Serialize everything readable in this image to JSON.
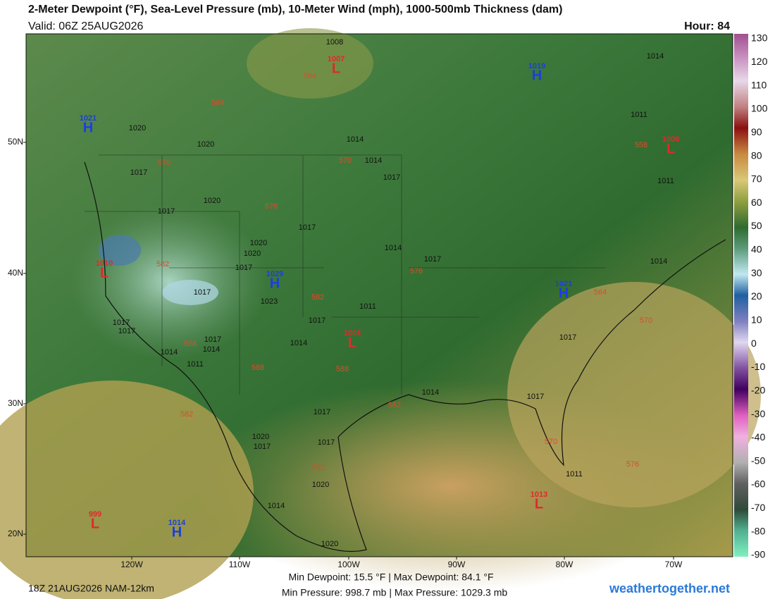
{
  "header": {
    "title": "2-Meter Dewpoint (°F), Sea-Level Pressure (mb), 10-Meter Wind (mph), 1000-500mb Thickness (dam)",
    "valid": "Valid: 06Z 25AUG2026",
    "hour": "Hour: 84"
  },
  "latitude_labels": [
    "50N",
    "40N",
    "30N",
    "20N"
  ],
  "longitude_labels": [
    "120W",
    "110W",
    "100W",
    "90W",
    "80W",
    "70W"
  ],
  "colorbar": {
    "labels": [
      130,
      120,
      110,
      100,
      90,
      80,
      70,
      60,
      50,
      40,
      30,
      20,
      10,
      0,
      -10,
      -20,
      -30,
      -40,
      -50,
      -60,
      -70,
      -80,
      -90
    ]
  },
  "pressure_centers": [
    {
      "letter": "L",
      "value": "1007"
    },
    {
      "letter": "H",
      "value": "1019"
    },
    {
      "letter": "H",
      "value": "1021"
    },
    {
      "letter": "L",
      "value": "1008"
    },
    {
      "letter": "L",
      "value": "1010"
    },
    {
      "letter": "H",
      "value": "1029"
    },
    {
      "letter": "H",
      "value": "1021"
    },
    {
      "letter": "L",
      "value": "1008"
    },
    {
      "letter": "L",
      "value": "1013"
    },
    {
      "letter": "L",
      "value": "999"
    },
    {
      "letter": "H",
      "value": "1014"
    }
  ],
  "isobar_labels": [
    "1020",
    "1020",
    "1017",
    "1017",
    "1020",
    "1020",
    "1020",
    "1017",
    "1017",
    "1017",
    "1014",
    "1017",
    "1014",
    "1014",
    "1017",
    "1023",
    "1011",
    "1017",
    "1014",
    "1017",
    "1014",
    "1014",
    "1011",
    "1017",
    "1017",
    "1017",
    "1020",
    "1017",
    "1017",
    "1020",
    "1014",
    "1014",
    "1017",
    "1017",
    "1014",
    "1011",
    "1011",
    "1014",
    "1011",
    "1020",
    "1008"
  ],
  "thickness_labels": [
    "564",
    "564",
    "570",
    "570",
    "576",
    "558",
    "582",
    "582",
    "576",
    "564",
    "570",
    "588",
    "588",
    "588",
    "582",
    "582",
    "582",
    "576",
    "570"
  ],
  "footer": {
    "run": "18Z 21AUG2026 NAM-12km",
    "dewpoint_range": "Min Dewpoint:  15.5 °F | Max Dewpoint:  84.1 °F",
    "pressure_range": "Min Pressure: 998.7 mb | Max Pressure: 1029.3 mb",
    "site": "weathertogether.net"
  }
}
